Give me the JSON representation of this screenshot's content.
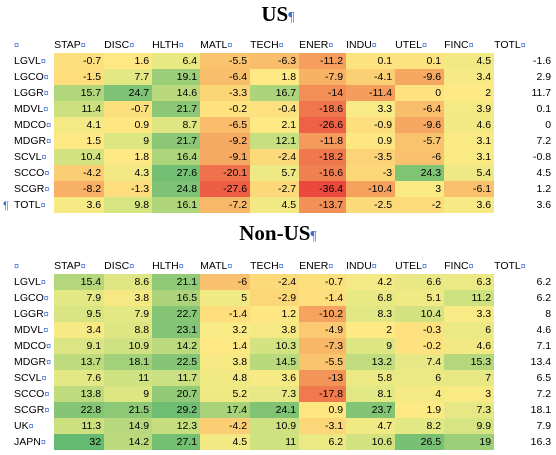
{
  "sections": [
    {
      "title": "US",
      "pilcrow": "¶",
      "header_mark": "¤",
      "columns": [
        "STAP",
        "DISC",
        "HLTH",
        "MATL",
        "TECH",
        "ENER",
        "INDU",
        "UTEL",
        "FINC",
        "TOTL"
      ],
      "rows": [
        {
          "label": "LGVL",
          "values": [
            -0.7,
            1.6,
            6.4,
            -5.5,
            -6.3,
            -11.2,
            0.1,
            0.1,
            4.5,
            -1.6
          ]
        },
        {
          "label": "LGCO",
          "values": [
            -1.5,
            7.7,
            19.1,
            -6.4,
            1.8,
            -7.9,
            -4.1,
            -9.6,
            3.4,
            2.9
          ]
        },
        {
          "label": "LGGR",
          "values": [
            15.7,
            24.7,
            14.6,
            -3.3,
            16.7,
            -14,
            -11.4,
            0,
            2,
            11.7
          ]
        },
        {
          "label": "MDVL",
          "values": [
            11.4,
            -0.7,
            21.7,
            -0.2,
            -0.4,
            -18.6,
            3.3,
            -6.4,
            3.9,
            0.1
          ]
        },
        {
          "label": "MDCO",
          "values": [
            4.1,
            0.9,
            8.7,
            -6.5,
            2.1,
            -26.6,
            -0.9,
            -9.6,
            4.6,
            0
          ]
        },
        {
          "label": "MDGR",
          "values": [
            1.5,
            9,
            21.7,
            -9.2,
            12.1,
            -11.8,
            0.9,
            -5.7,
            3.1,
            7.2
          ]
        },
        {
          "label": "SCVL",
          "values": [
            10.4,
            1.8,
            16.4,
            -9.1,
            -2.4,
            -18.2,
            -3.5,
            -6,
            3.1,
            -0.8
          ]
        },
        {
          "label": "SCCO",
          "values": [
            -4.2,
            4.3,
            27.6,
            -20.1,
            5.7,
            -16.6,
            -3,
            24.3,
            5.4,
            4.5
          ]
        },
        {
          "label": "SCGR",
          "values": [
            -8.2,
            -1.3,
            24.8,
            -27.6,
            -2.7,
            -36.4,
            -10.4,
            3,
            -6.1,
            1.2
          ]
        },
        {
          "label": "TOTL",
          "values": [
            3.6,
            9.8,
            16.1,
            -7.2,
            4.5,
            -13.7,
            -2.5,
            -2,
            3.6,
            3.6
          ]
        }
      ]
    },
    {
      "title": "Non-US",
      "pilcrow": "¶",
      "header_mark": "¤",
      "columns": [
        "STAP",
        "DISC",
        "HLTH",
        "MATL",
        "TECH",
        "ENER",
        "INDU",
        "UTEL",
        "FINC",
        "TOTL"
      ],
      "rows": [
        {
          "label": "LGVL",
          "values": [
            15.4,
            8.6,
            21.1,
            -6,
            -2.4,
            -0.7,
            4.2,
            6.6,
            6.3,
            6.2
          ]
        },
        {
          "label": "LGCO",
          "values": [
            7.9,
            3.8,
            16.5,
            5,
            -2.9,
            -1.4,
            6.8,
            5.1,
            11.2,
            6.2
          ]
        },
        {
          "label": "LGGR",
          "values": [
            9.5,
            7.9,
            22.7,
            -1.4,
            1.2,
            -10.2,
            8.3,
            10.4,
            3.3,
            8
          ]
        },
        {
          "label": "MDVL",
          "values": [
            3.4,
            8.8,
            23.1,
            3.2,
            3.8,
            -4.9,
            2,
            -0.3,
            6,
            4.6
          ]
        },
        {
          "label": "MDCO",
          "values": [
            9.1,
            10.9,
            14.2,
            1.4,
            10.3,
            -7.3,
            9,
            -0.2,
            4.6,
            7.1
          ]
        },
        {
          "label": "MDGR",
          "values": [
            13.7,
            18.1,
            22.5,
            3.8,
            14.5,
            -5.5,
            13.2,
            7.4,
            15.3,
            13.4
          ]
        },
        {
          "label": "SCVL",
          "values": [
            7.6,
            11,
            11.7,
            4.8,
            3.6,
            -13,
            5.8,
            6,
            7,
            6.5
          ]
        },
        {
          "label": "SCCO",
          "values": [
            13.8,
            9,
            20.7,
            5.2,
            7.3,
            -17.8,
            8.1,
            4,
            3,
            7.2
          ]
        },
        {
          "label": "SCGR",
          "values": [
            22.8,
            21.5,
            29.2,
            17.4,
            24.1,
            0.9,
            23.7,
            1.9,
            7.3,
            18.1
          ]
        },
        {
          "label": "UK",
          "values": [
            11.3,
            14.9,
            12.3,
            -4.2,
            10.9,
            -3.1,
            4.7,
            8.2,
            9.9,
            7.9
          ]
        },
        {
          "label": "JAPN",
          "values": [
            32,
            14.2,
            27.1,
            4.5,
            11,
            6.2,
            10.6,
            26.5,
            19,
            16.3
          ]
        }
      ]
    }
  ],
  "trailing_pilcrow": "¶"
}
